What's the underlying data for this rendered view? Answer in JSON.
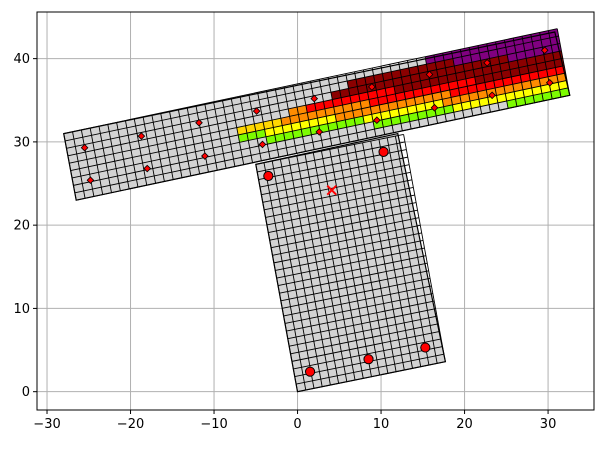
{
  "chart_data": {
    "type": "scatter",
    "title": "",
    "xlabel": "",
    "ylabel": "",
    "xlim": [
      -31.2,
      35.5
    ],
    "ylim": [
      -2.2,
      45.6
    ],
    "grid": true,
    "x_ticks": [
      -30,
      -20,
      -10,
      0,
      10,
      20,
      30
    ],
    "y_ticks": [
      0,
      10,
      20,
      30,
      40
    ],
    "x_tick_labels": [
      "−30",
      "−20",
      "−10",
      "0",
      "10",
      "20",
      "30"
    ],
    "y_tick_labels": [
      "0",
      "10",
      "20",
      "30",
      "40"
    ],
    "grid_color": "#b0b0b0",
    "mesh_fill": "#d3d3d3",
    "mesh_line": "#000000",
    "stem": {
      "corners": [
        [
          0.0,
          0.0
        ],
        [
          17.7,
          3.6
        ],
        [
          12.0,
          31.0
        ],
        [
          -5.0,
          27.3
        ]
      ],
      "cols": 18,
      "rows": 30
    },
    "flange": {
      "corners": [
        [
          -26.5,
          23.0
        ],
        [
          32.6,
          35.6
        ],
        [
          30.8,
          43.2
        ],
        [
          -28.0,
          31.0
        ]
      ],
      "cols": 56,
      "rows": 9
    },
    "colored_cells": [
      {
        "region": "flange",
        "row": 8,
        "from": 41,
        "to": 55,
        "color": "#800080"
      },
      {
        "region": "flange",
        "row": 7,
        "from": 44,
        "to": 55,
        "color": "#800080"
      },
      {
        "region": "flange",
        "row": 6,
        "from": 50,
        "to": 55,
        "color": "#800080"
      },
      {
        "region": "flange",
        "row": 7,
        "from": 32,
        "to": 43,
        "color": "#8b0000"
      },
      {
        "region": "flange",
        "row": 6,
        "from": 30,
        "to": 49,
        "color": "#8b0000"
      },
      {
        "region": "flange",
        "row": 5,
        "from": 37,
        "to": 55,
        "color": "#8b0000"
      },
      {
        "region": "flange",
        "row": 4,
        "from": 46,
        "to": 55,
        "color": "#8b0000"
      },
      {
        "region": "flange",
        "row": 5,
        "from": 27,
        "to": 36,
        "color": "#ff0000"
      },
      {
        "region": "flange",
        "row": 4,
        "from": 34,
        "to": 45,
        "color": "#ff0000"
      },
      {
        "region": "flange",
        "row": 3,
        "from": 43,
        "to": 55,
        "color": "#ff0000"
      },
      {
        "region": "flange",
        "row": 5,
        "from": 25,
        "to": 26,
        "color": "#ff8c00"
      },
      {
        "region": "flange",
        "row": 4,
        "from": 24,
        "to": 33,
        "color": "#ff8c00"
      },
      {
        "region": "flange",
        "row": 3,
        "from": 30,
        "to": 42,
        "color": "#ff8c00"
      },
      {
        "region": "flange",
        "row": 2,
        "from": 42,
        "to": 55,
        "color": "#ff8c00"
      },
      {
        "region": "flange",
        "row": 4,
        "from": 19,
        "to": 23,
        "color": "#ffd700"
      },
      {
        "region": "flange",
        "row": 3,
        "from": 22,
        "to": 29,
        "color": "#ffff00"
      },
      {
        "region": "flange",
        "row": 2,
        "from": 33,
        "to": 41,
        "color": "#ffff00"
      },
      {
        "region": "flange",
        "row": 1,
        "from": 43,
        "to": 55,
        "color": "#ffff00"
      },
      {
        "region": "flange",
        "row": 3,
        "from": 19,
        "to": 21,
        "color": "#7cfc00"
      },
      {
        "region": "flange",
        "row": 2,
        "from": 22,
        "to": 32,
        "color": "#7cfc00"
      },
      {
        "region": "flange",
        "row": 1,
        "from": 34,
        "to": 42,
        "color": "#7cfc00"
      },
      {
        "region": "flange",
        "row": 0,
        "from": 49,
        "to": 55,
        "color": "#7cfc00"
      }
    ],
    "small_markers": [
      [
        -25.5,
        29.3
      ],
      [
        -24.8,
        25.4
      ],
      [
        -18.7,
        30.7
      ],
      [
        -18.0,
        26.8
      ],
      [
        -11.8,
        32.3
      ],
      [
        -11.1,
        28.3
      ],
      [
        -4.9,
        33.7
      ],
      [
        -4.2,
        29.7
      ],
      [
        2.0,
        35.2
      ],
      [
        2.6,
        31.2
      ],
      [
        8.9,
        36.6
      ],
      [
        9.5,
        32.6
      ],
      [
        15.8,
        38.1
      ],
      [
        16.4,
        34.1
      ],
      [
        22.7,
        39.5
      ],
      [
        23.3,
        35.6
      ],
      [
        29.6,
        41.0
      ],
      [
        30.2,
        37.1
      ]
    ],
    "large_markers": [
      [
        -3.5,
        25.9
      ],
      [
        10.3,
        28.8
      ],
      [
        1.5,
        2.4
      ],
      [
        8.5,
        3.9
      ],
      [
        15.3,
        5.3
      ]
    ],
    "centroid": [
      4.1,
      24.2
    ],
    "marker_color": "#ff0000",
    "centroid_color": "#ff0000"
  }
}
